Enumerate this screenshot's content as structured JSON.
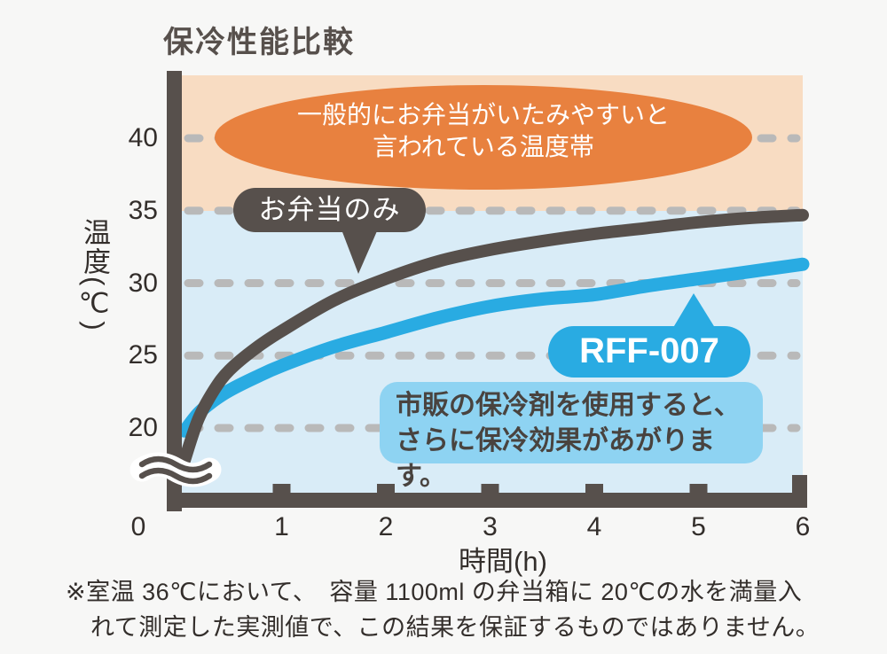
{
  "title": "保冷性能比較",
  "colors": {
    "dark": "#57504c",
    "accent_blue": "#29abe2",
    "band_orange": "#f8dcc2",
    "band_blue": "#d9ecf7",
    "ellipse_orange": "#e8813f",
    "info_box_blue": "#8ed3f2",
    "gridline_gray": "#b9b9b9",
    "text_dark": "#332e2b",
    "page_bg": "#f7f7f6"
  },
  "chart_data": {
    "type": "line",
    "title": "保冷性能比較",
    "xlabel": "時間(h)",
    "ylabel": "温度(℃)",
    "xticks": [
      0,
      1,
      2,
      3,
      4,
      5,
      6
    ],
    "yticks": [
      20,
      25,
      30,
      35,
      40
    ],
    "xlim": [
      0,
      6
    ],
    "ylim_shown": [
      20,
      44
    ],
    "axis_break_below": 20,
    "grid": "horizontal dashed gridlines at each y tick",
    "danger_band": {
      "from_temp": 35,
      "note": "一般的にお弁当がいたみやすいと言われている温度帯"
    },
    "series": [
      {
        "name": "お弁当のみ",
        "color": "#57504c",
        "values_hourly": [
          20,
          26.7,
          30.3,
          32.3,
          33.4,
          34.2,
          34.7
        ],
        "points": [
          [
            0.07,
            17.8
          ],
          [
            0.2,
            20.6
          ],
          [
            0.35,
            22.6
          ],
          [
            0.5,
            24.0
          ],
          [
            0.75,
            25.5
          ],
          [
            1,
            26.7
          ],
          [
            1.5,
            28.8
          ],
          [
            2,
            30.3
          ],
          [
            2.5,
            31.5
          ],
          [
            3,
            32.3
          ],
          [
            3.5,
            32.9
          ],
          [
            4,
            33.4
          ],
          [
            4.5,
            33.8
          ],
          [
            5,
            34.2
          ],
          [
            5.5,
            34.5
          ],
          [
            6,
            34.7
          ]
        ]
      },
      {
        "name": "RFF-007",
        "color": "#29abe2",
        "values_hourly": [
          20,
          24.3,
          26.6,
          28.4,
          29.2,
          30.3,
          31.3
        ],
        "points": [
          [
            0.07,
            19.8
          ],
          [
            0.2,
            21.0
          ],
          [
            0.35,
            21.9
          ],
          [
            0.5,
            22.6
          ],
          [
            0.75,
            23.5
          ],
          [
            1,
            24.3
          ],
          [
            1.5,
            25.6
          ],
          [
            2,
            26.6
          ],
          [
            2.5,
            27.6
          ],
          [
            3,
            28.4
          ],
          [
            3.5,
            28.9
          ],
          [
            4,
            29.2
          ],
          [
            4.5,
            29.8
          ],
          [
            5,
            30.3
          ],
          [
            5.5,
            30.8
          ],
          [
            6,
            31.3
          ]
        ]
      }
    ]
  },
  "axis": {
    "x_title": "時間(h)",
    "y_title": "温度(℃)"
  },
  "annotations": {
    "danger_line1": "一般的にお弁当がいたみやすいと",
    "danger_line2": "言われている温度帯",
    "bento_label": "お弁当のみ",
    "product_label": "RFF-007",
    "info_line1": "市販の保冷剤を使用すると、",
    "info_line2": "さらに保冷効果があがります。"
  },
  "footnote": {
    "line1": "※室温 36℃において、　容量 1100ml の弁当箱に 20℃の水を満量入",
    "line2": "れて測定した実測値で、この結果を保証するものではありません。"
  }
}
